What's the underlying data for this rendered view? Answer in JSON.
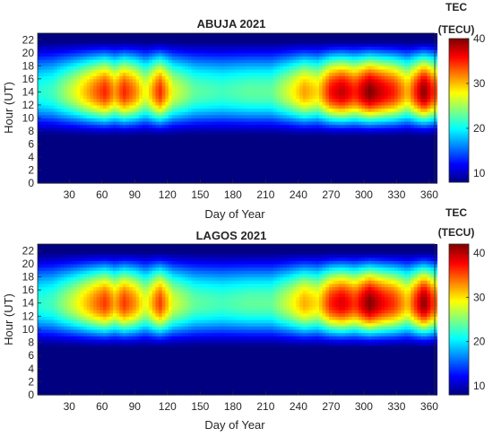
{
  "chart_data": [
    {
      "type": "heatmap",
      "title": "ABUJA 2021",
      "xlabel": "Day of Year",
      "ylabel": "Hour (UT)",
      "xlim": [
        1,
        365
      ],
      "ylim": [
        0,
        23
      ],
      "xticks": [
        "30",
        "60",
        "90",
        "120",
        "150",
        "180",
        "210",
        "240",
        "270",
        "300",
        "330",
        "360"
      ],
      "yticks": [
        "0",
        "2",
        "4",
        "6",
        "8",
        "10",
        "12",
        "14",
        "16",
        "18",
        "20",
        "22"
      ],
      "colorbar": {
        "label_line1": "TEC",
        "label_line2": "(TECU)",
        "ticks": [
          "10",
          "20",
          "30",
          "40"
        ],
        "range": [
          8,
          40
        ],
        "colormap": "jet"
      },
      "diurnal_profile": {
        "night_level": 8,
        "day_start_hour": 7,
        "peak_hour": 14,
        "day_end_hour": 22
      },
      "peak_tec_by_day": [
        {
          "day": 1,
          "peak_tec": 21
        },
        {
          "day": 15,
          "peak_tec": 22
        },
        {
          "day": 35,
          "peak_tec": 27
        },
        {
          "day": 55,
          "peak_tec": 33
        },
        {
          "day": 63,
          "peak_tec": 35
        },
        {
          "day": 72,
          "peak_tec": 31
        },
        {
          "day": 80,
          "peak_tec": 35
        },
        {
          "day": 90,
          "peak_tec": 32
        },
        {
          "day": 100,
          "peak_tec": 27
        },
        {
          "day": 113,
          "peak_tec": 35
        },
        {
          "day": 125,
          "peak_tec": 27
        },
        {
          "day": 145,
          "peak_tec": 23
        },
        {
          "day": 170,
          "peak_tec": 22
        },
        {
          "day": 195,
          "peak_tec": 23
        },
        {
          "day": 215,
          "peak_tec": 23
        },
        {
          "day": 232,
          "peak_tec": 27
        },
        {
          "day": 245,
          "peak_tec": 31
        },
        {
          "day": 258,
          "peak_tec": 29
        },
        {
          "day": 270,
          "peak_tec": 36
        },
        {
          "day": 280,
          "peak_tec": 38
        },
        {
          "day": 292,
          "peak_tec": 35
        },
        {
          "day": 305,
          "peak_tec": 40
        },
        {
          "day": 318,
          "peak_tec": 37
        },
        {
          "day": 328,
          "peak_tec": 35
        },
        {
          "day": 340,
          "peak_tec": 30
        },
        {
          "day": 355,
          "peak_tec": 40
        },
        {
          "day": 365,
          "peak_tec": 34
        }
      ]
    },
    {
      "type": "heatmap",
      "title": "LAGOS 2021",
      "xlabel": "Day of Year",
      "ylabel": "Hour (UT)",
      "xlim": [
        1,
        365
      ],
      "ylim": [
        0,
        23
      ],
      "xticks": [
        "30",
        "60",
        "90",
        "120",
        "150",
        "180",
        "210",
        "240",
        "270",
        "300",
        "330",
        "360"
      ],
      "yticks": [
        "0",
        "2",
        "4",
        "6",
        "8",
        "10",
        "12",
        "14",
        "16",
        "18",
        "20",
        "22"
      ],
      "colorbar": {
        "label_line1": "TEC",
        "label_line2": "(TECU)",
        "ticks": [
          "10",
          "20",
          "30",
          "40"
        ],
        "range": [
          8,
          42
        ],
        "colormap": "jet"
      },
      "diurnal_profile": {
        "night_level": 8,
        "day_start_hour": 7,
        "peak_hour": 14,
        "day_end_hour": 22
      },
      "peak_tec_by_day": [
        {
          "day": 1,
          "peak_tec": 22
        },
        {
          "day": 15,
          "peak_tec": 23
        },
        {
          "day": 35,
          "peak_tec": 28
        },
        {
          "day": 55,
          "peak_tec": 34
        },
        {
          "day": 63,
          "peak_tec": 36
        },
        {
          "day": 72,
          "peak_tec": 32
        },
        {
          "day": 80,
          "peak_tec": 36
        },
        {
          "day": 90,
          "peak_tec": 33
        },
        {
          "day": 100,
          "peak_tec": 28
        },
        {
          "day": 113,
          "peak_tec": 36
        },
        {
          "day": 125,
          "peak_tec": 28
        },
        {
          "day": 145,
          "peak_tec": 24
        },
        {
          "day": 170,
          "peak_tec": 23
        },
        {
          "day": 195,
          "peak_tec": 24
        },
        {
          "day": 215,
          "peak_tec": 24
        },
        {
          "day": 232,
          "peak_tec": 28
        },
        {
          "day": 245,
          "peak_tec": 32
        },
        {
          "day": 258,
          "peak_tec": 30
        },
        {
          "day": 270,
          "peak_tec": 37
        },
        {
          "day": 280,
          "peak_tec": 39
        },
        {
          "day": 292,
          "peak_tec": 36
        },
        {
          "day": 305,
          "peak_tec": 42
        },
        {
          "day": 318,
          "peak_tec": 38
        },
        {
          "day": 328,
          "peak_tec": 36
        },
        {
          "day": 340,
          "peak_tec": 31
        },
        {
          "day": 355,
          "peak_tec": 42
        },
        {
          "day": 365,
          "peak_tec": 35
        }
      ]
    }
  ]
}
